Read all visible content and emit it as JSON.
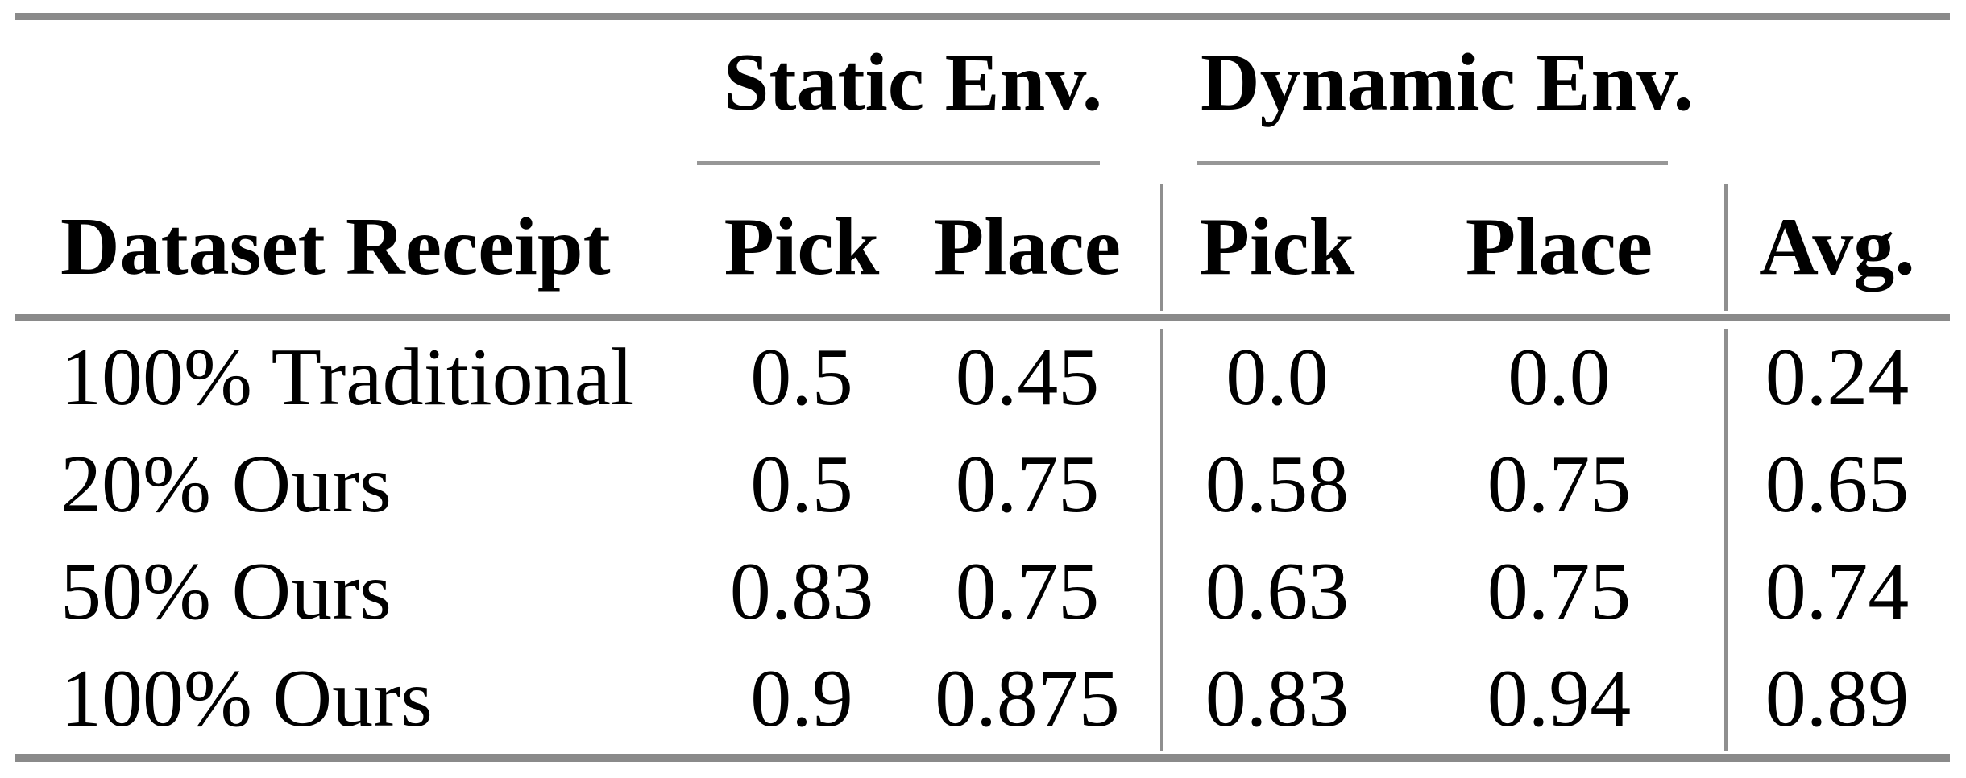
{
  "colors": {
    "background": "#ffffff",
    "text": "#000000",
    "thick_rule": "#8a8a8a",
    "thin_rule": "#979797",
    "vertical_separator": "#8f8f8f"
  },
  "table": {
    "group_headers": [
      "Static Env.",
      "Dynamic Env."
    ],
    "columns": [
      "Dataset Receipt",
      "Pick",
      "Place",
      "Pick",
      "Place",
      "Avg."
    ],
    "rows": [
      [
        "100% Traditional",
        "0.5",
        "0.45",
        "0.0",
        "0.0",
        "0.24"
      ],
      [
        "20% Ours",
        "0.5",
        "0.75",
        "0.58",
        "0.75",
        "0.65"
      ],
      [
        "50% Ours",
        "0.83",
        "0.75",
        "0.63",
        "0.75",
        "0.74"
      ],
      [
        "100% Ours",
        "0.9",
        "0.875",
        "0.83",
        "0.94",
        "0.89"
      ]
    ]
  },
  "chart_data": {
    "type": "table",
    "title": "",
    "column_groups": [
      {
        "label": "Static Env.",
        "columns": [
          "Pick",
          "Place"
        ]
      },
      {
        "label": "Dynamic Env.",
        "columns": [
          "Pick",
          "Place"
        ]
      }
    ],
    "columns": [
      "Dataset Receipt",
      "Static Pick",
      "Static Place",
      "Dynamic Pick",
      "Dynamic Place",
      "Avg."
    ],
    "rows": [
      {
        "dataset_receipt": "100% Traditional",
        "static_pick": 0.5,
        "static_place": 0.45,
        "dynamic_pick": 0.0,
        "dynamic_place": 0.0,
        "avg": 0.24
      },
      {
        "dataset_receipt": "20% Ours",
        "static_pick": 0.5,
        "static_place": 0.75,
        "dynamic_pick": 0.58,
        "dynamic_place": 0.75,
        "avg": 0.65
      },
      {
        "dataset_receipt": "50% Ours",
        "static_pick": 0.83,
        "static_place": 0.75,
        "dynamic_pick": 0.63,
        "dynamic_place": 0.75,
        "avg": 0.74
      },
      {
        "dataset_receipt": "100% Ours",
        "static_pick": 0.9,
        "static_place": 0.875,
        "dynamic_pick": 0.83,
        "dynamic_place": 0.94,
        "avg": 0.89
      }
    ]
  }
}
